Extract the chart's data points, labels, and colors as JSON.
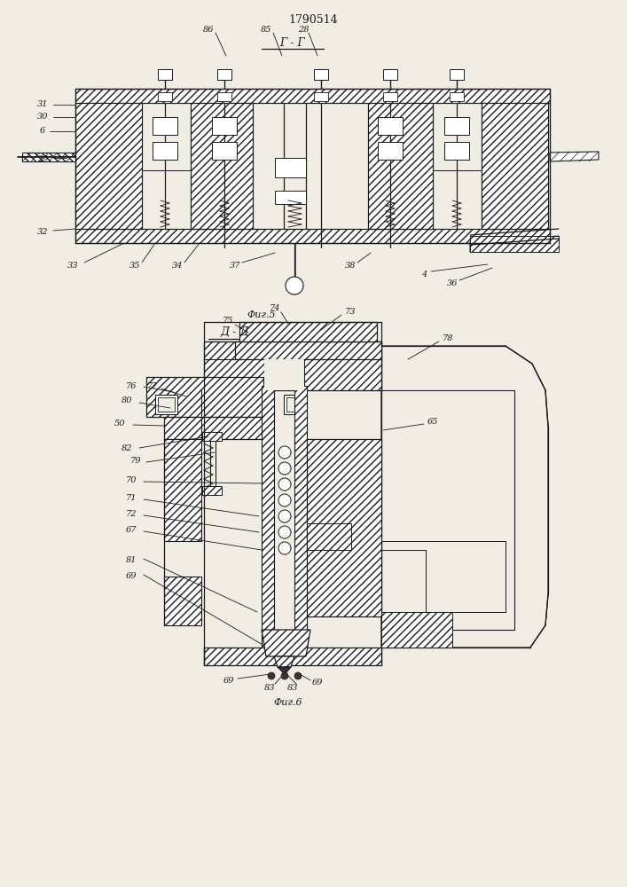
{
  "title": "1790514",
  "fig5_label": "Фиг.5",
  "fig6_label": "Фиг.6",
  "section_gg": "Г - Г",
  "section_dd": "Д - Д",
  "bg_color": "#f0ede5",
  "line_color": "#1a1a1a"
}
